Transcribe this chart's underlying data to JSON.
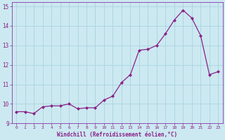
{
  "x": [
    0,
    1,
    2,
    3,
    4,
    5,
    6,
    7,
    8,
    9,
    10,
    11,
    12,
    13,
    14,
    15,
    16,
    17,
    18,
    19,
    20,
    21,
    22,
    23
  ],
  "y": [
    9.6,
    9.6,
    9.5,
    9.85,
    9.9,
    9.9,
    10.0,
    9.75,
    9.8,
    9.8,
    10.2,
    10.4,
    11.1,
    11.5,
    12.75,
    12.8,
    13.0,
    13.6,
    14.3,
    14.8,
    14.4,
    13.5,
    11.5,
    11.65
  ],
  "xlabel": "Windchill (Refroidissement éolien,°C)",
  "ylim": [
    9.0,
    15.2
  ],
  "xlim": [
    -0.5,
    23.5
  ],
  "yticks": [
    9,
    10,
    11,
    12,
    13,
    14,
    15
  ],
  "xticks": [
    0,
    1,
    2,
    3,
    4,
    5,
    6,
    7,
    8,
    9,
    10,
    11,
    12,
    13,
    14,
    15,
    16,
    17,
    18,
    19,
    20,
    21,
    22,
    23
  ],
  "line_color": "#882288",
  "bg_color": "#cce8f0",
  "grid_color": "#aad4e0",
  "border_color": "#8833aa",
  "tick_label_color": "#882288",
  "xlabel_color": "#882288"
}
